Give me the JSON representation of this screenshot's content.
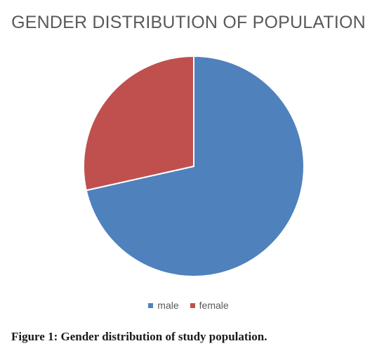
{
  "chart_data": {
    "type": "pie",
    "title": "GENDER DISTRIBUTION OF POPULATION",
    "categories": [
      "male",
      "female"
    ],
    "values": [
      71.5,
      28.5
    ],
    "colors": [
      "#4F81BD",
      "#C0504D"
    ],
    "legend_position": "bottom",
    "start": "top, clockwise"
  },
  "caption": "Figure 1: Gender distribution of study population."
}
